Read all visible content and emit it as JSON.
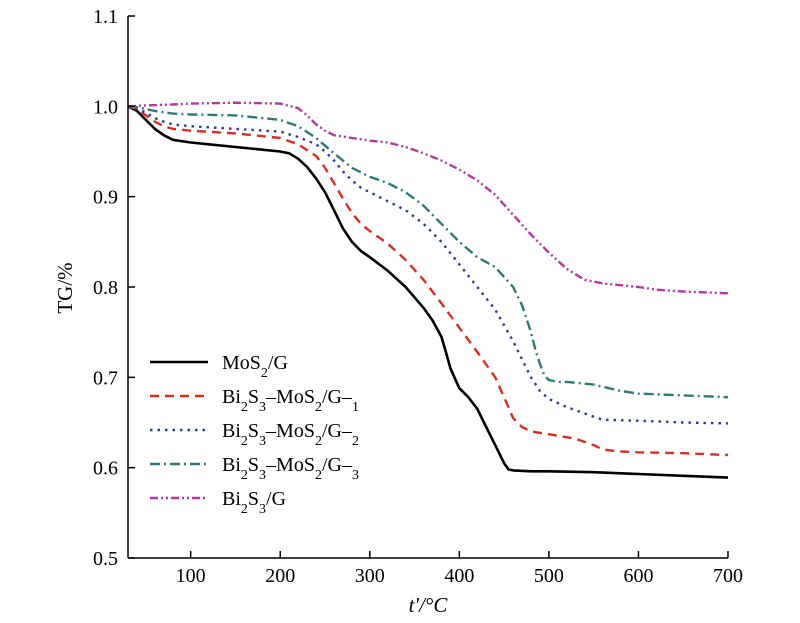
{
  "chart_data": {
    "type": "line",
    "xlabel": "t′/°C",
    "ylabel": "TG/%",
    "xlim": [
      30,
      700
    ],
    "ylim": [
      0.5,
      1.1
    ],
    "xticks": [
      100,
      200,
      300,
      400,
      500,
      600,
      700
    ],
    "xtick_labels": [
      "100",
      "200",
      "300",
      "400",
      "500",
      "600",
      "700"
    ],
    "yticks": [
      0.5,
      0.6,
      0.7,
      0.8,
      0.9,
      1.0,
      1.1
    ],
    "ytick_labels": [
      "0.5",
      "0.6",
      "0.7",
      "0.8",
      "0.9",
      "1.0",
      "1.1"
    ],
    "grid": false,
    "legend_position": "bottom-left",
    "series": [
      {
        "name": "MoS2/G",
        "color": "#000000",
        "dash": "solid",
        "x": [
          30,
          40,
          50,
          60,
          70,
          80,
          100,
          120,
          150,
          180,
          200,
          210,
          220,
          230,
          240,
          250,
          260,
          270,
          280,
          290,
          300,
          320,
          340,
          360,
          370,
          380,
          385,
          390,
          400,
          410,
          420,
          430,
          440,
          450,
          455,
          460,
          480,
          500,
          550,
          600,
          650,
          700
        ],
        "y": [
          1.0,
          0.995,
          0.985,
          0.975,
          0.968,
          0.963,
          0.96,
          0.958,
          0.955,
          0.952,
          0.95,
          0.948,
          0.942,
          0.933,
          0.92,
          0.905,
          0.885,
          0.865,
          0.85,
          0.84,
          0.833,
          0.818,
          0.8,
          0.777,
          0.763,
          0.745,
          0.728,
          0.71,
          0.688,
          0.678,
          0.665,
          0.645,
          0.625,
          0.605,
          0.598,
          0.597,
          0.596,
          0.596,
          0.595,
          0.593,
          0.591,
          0.589
        ]
      },
      {
        "name": "Bi2S3–MoS2/G–1",
        "color": "#d62e23",
        "dash": "dashed",
        "x": [
          30,
          40,
          50,
          60,
          70,
          80,
          100,
          150,
          200,
          220,
          240,
          250,
          260,
          270,
          280,
          290,
          300,
          320,
          340,
          360,
          380,
          400,
          420,
          440,
          450,
          460,
          470,
          480,
          500,
          530,
          550,
          560,
          580,
          600,
          650,
          700
        ],
        "y": [
          1.0,
          0.997,
          0.99,
          0.983,
          0.978,
          0.975,
          0.973,
          0.97,
          0.965,
          0.958,
          0.945,
          0.932,
          0.915,
          0.898,
          0.882,
          0.87,
          0.862,
          0.848,
          0.83,
          0.808,
          0.782,
          0.755,
          0.728,
          0.7,
          0.678,
          0.655,
          0.645,
          0.64,
          0.637,
          0.632,
          0.625,
          0.62,
          0.618,
          0.617,
          0.616,
          0.614
        ]
      },
      {
        "name": "Bi2S3–MoS2/G–2",
        "color": "#2a3aa8",
        "dash": "dotted",
        "x": [
          30,
          40,
          50,
          60,
          70,
          80,
          100,
          150,
          200,
          220,
          240,
          250,
          260,
          270,
          280,
          290,
          300,
          320,
          340,
          360,
          380,
          400,
          420,
          440,
          460,
          470,
          480,
          490,
          500,
          520,
          540,
          560,
          600,
          650,
          700
        ],
        "y": [
          1.0,
          0.998,
          0.993,
          0.987,
          0.983,
          0.98,
          0.978,
          0.975,
          0.972,
          0.966,
          0.958,
          0.95,
          0.94,
          0.928,
          0.918,
          0.91,
          0.905,
          0.895,
          0.885,
          0.87,
          0.85,
          0.825,
          0.8,
          0.775,
          0.74,
          0.72,
          0.7,
          0.685,
          0.676,
          0.667,
          0.66,
          0.653,
          0.652,
          0.65,
          0.649
        ]
      },
      {
        "name": "Bi2S3–MoS2/G–3",
        "color": "#2f7a78",
        "dash": "dashdot",
        "x": [
          30,
          40,
          60,
          80,
          100,
          150,
          200,
          220,
          240,
          260,
          280,
          300,
          320,
          340,
          360,
          380,
          400,
          420,
          440,
          460,
          470,
          480,
          485,
          490,
          495,
          500,
          510,
          520,
          550,
          580,
          600,
          650,
          700
        ],
        "y": [
          1.0,
          0.999,
          0.995,
          0.992,
          0.991,
          0.99,
          0.985,
          0.978,
          0.965,
          0.948,
          0.932,
          0.922,
          0.915,
          0.905,
          0.89,
          0.87,
          0.85,
          0.833,
          0.822,
          0.8,
          0.78,
          0.75,
          0.73,
          0.715,
          0.702,
          0.697,
          0.695,
          0.695,
          0.692,
          0.685,
          0.682,
          0.68,
          0.678
        ]
      },
      {
        "name": "Bi2S3/G",
        "color": "#b03aa0",
        "dash": "dashdotdot",
        "x": [
          30,
          50,
          80,
          100,
          150,
          200,
          220,
          230,
          240,
          250,
          260,
          280,
          300,
          320,
          340,
          360,
          380,
          400,
          420,
          440,
          460,
          480,
          500,
          520,
          540,
          560,
          580,
          600,
          620,
          650,
          700
        ],
        "y": [
          1.0,
          1.001,
          1.002,
          1.003,
          1.004,
          1.003,
          0.998,
          0.99,
          0.98,
          0.973,
          0.968,
          0.965,
          0.962,
          0.96,
          0.955,
          0.948,
          0.94,
          0.93,
          0.918,
          0.902,
          0.88,
          0.858,
          0.838,
          0.82,
          0.808,
          0.804,
          0.802,
          0.8,
          0.797,
          0.795,
          0.793
        ]
      }
    ]
  }
}
